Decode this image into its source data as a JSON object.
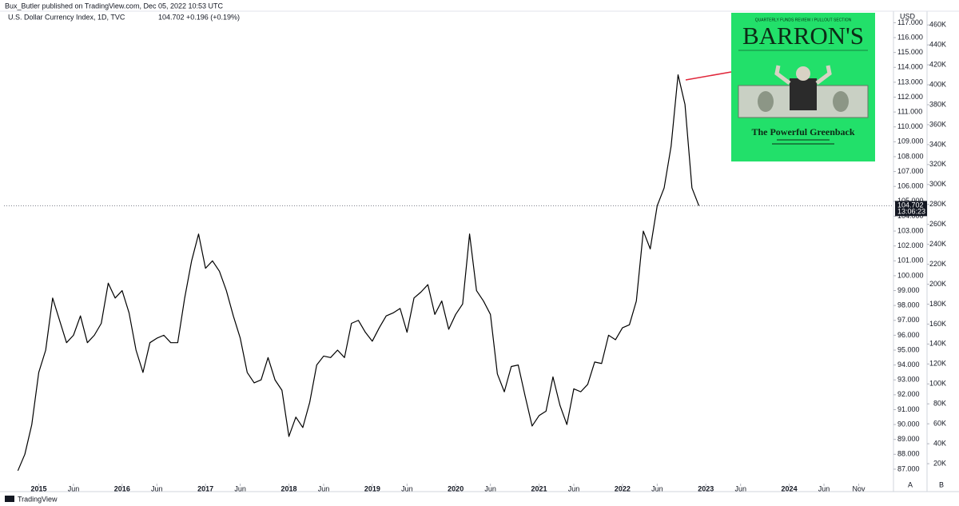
{
  "header": {
    "publisher": "Bux_Butler published on TradingView.com, Dec 05, 2022 10:53 UTC",
    "symbol": "U.S. Dollar Currency Index, 1D, TVC",
    "change": "+0.196 (+0.19%)",
    "footer_logo": "TradingView",
    "buttons": [
      "A",
      "B"
    ]
  },
  "cover": {
    "kicker": "QUARTERLY FUNDS REVIEW / PULLOUT SECTION",
    "masthead": "BARRON'S",
    "headline": "The Powerful Greenback"
  },
  "chart_data": {
    "type": "line",
    "grid": false,
    "y_axis_label": "USD",
    "last_value": 104.702,
    "countdown": "13:06:23",
    "xlim": [
      "2014-08",
      "2025-04"
    ],
    "xticks": [
      {
        "value": "2015-01",
        "label": "2015"
      },
      {
        "value": "2015-06",
        "label": "Jun"
      },
      {
        "value": "2016-01",
        "label": "2016"
      },
      {
        "value": "2016-06",
        "label": "Jun"
      },
      {
        "value": "2017-01",
        "label": "2017"
      },
      {
        "value": "2017-06",
        "label": "Jun"
      },
      {
        "value": "2018-01",
        "label": "2018"
      },
      {
        "value": "2018-06",
        "label": "Jun"
      },
      {
        "value": "2019-01",
        "label": "2019"
      },
      {
        "value": "2019-06",
        "label": "Jun"
      },
      {
        "value": "2020-01",
        "label": "2020"
      },
      {
        "value": "2020-06",
        "label": "Jun"
      },
      {
        "value": "2021-01",
        "label": "2021"
      },
      {
        "value": "2021-06",
        "label": "Jun"
      },
      {
        "value": "2022-01",
        "label": "2022"
      },
      {
        "value": "2022-06",
        "label": "Jun"
      },
      {
        "value": "2023-01",
        "label": "2023"
      },
      {
        "value": "2023-06",
        "label": "Jun"
      },
      {
        "value": "2024-01",
        "label": "2024"
      },
      {
        "value": "2024-06",
        "label": "Jun"
      },
      {
        "value": "2024-11",
        "label": "Nov"
      }
    ],
    "ylim": [
      86.03,
      117.72
    ],
    "yticks": [
      {
        "value": 87,
        "label": "87.000"
      },
      {
        "value": 88,
        "label": "88.000"
      },
      {
        "value": 89,
        "label": "89.000"
      },
      {
        "value": 90,
        "label": "90.000"
      },
      {
        "value": 91,
        "label": "91.000"
      },
      {
        "value": 92,
        "label": "92.000"
      },
      {
        "value": 93,
        "label": "93.000"
      },
      {
        "value": 94,
        "label": "94.000"
      },
      {
        "value": 95,
        "label": "95.000"
      },
      {
        "value": 96,
        "label": "96.000"
      },
      {
        "value": 97,
        "label": "97.000"
      },
      {
        "value": 98,
        "label": "98.000"
      },
      {
        "value": 99,
        "label": "99.000"
      },
      {
        "value": 100,
        "label": "100.000"
      },
      {
        "value": 101,
        "label": "101.000"
      },
      {
        "value": 102,
        "label": "102.000"
      },
      {
        "value": 103,
        "label": "103.000"
      },
      {
        "value": 104,
        "label": "104.000"
      },
      {
        "value": 105,
        "label": "105.000"
      },
      {
        "value": 106,
        "label": "106.000"
      },
      {
        "value": 107,
        "label": "107.000"
      },
      {
        "value": 108,
        "label": "108.000"
      },
      {
        "value": 109,
        "label": "109.000"
      },
      {
        "value": 110,
        "label": "110.000"
      },
      {
        "value": 111,
        "label": "111.000"
      },
      {
        "value": 112,
        "label": "112.000"
      },
      {
        "value": 113,
        "label": "113.000"
      },
      {
        "value": 114,
        "label": "114.000"
      },
      {
        "value": 115,
        "label": "115.000"
      },
      {
        "value": 116,
        "label": "116.000"
      },
      {
        "value": 117,
        "label": "117.000"
      }
    ],
    "y2lim": [
      0,
      473000
    ],
    "y2ticks": [
      {
        "value": 20000,
        "label": "20K"
      },
      {
        "value": 40000,
        "label": "40K"
      },
      {
        "value": 60000,
        "label": "60K"
      },
      {
        "value": 80000,
        "label": "80K"
      },
      {
        "value": 100000,
        "label": "100K"
      },
      {
        "value": 120000,
        "label": "120K"
      },
      {
        "value": 140000,
        "label": "140K"
      },
      {
        "value": 160000,
        "label": "160K"
      },
      {
        "value": 180000,
        "label": "180K"
      },
      {
        "value": 200000,
        "label": "200K"
      },
      {
        "value": 220000,
        "label": "220K"
      },
      {
        "value": 240000,
        "label": "240K"
      },
      {
        "value": 260000,
        "label": "260K"
      },
      {
        "value": 280000,
        "label": "280K"
      },
      {
        "value": 300000,
        "label": "300K"
      },
      {
        "value": 320000,
        "label": "320K"
      },
      {
        "value": 340000,
        "label": "340K"
      },
      {
        "value": 360000,
        "label": "360K"
      },
      {
        "value": 380000,
        "label": "380K"
      },
      {
        "value": 400000,
        "label": "400K"
      },
      {
        "value": 420000,
        "label": "420K"
      },
      {
        "value": 440000,
        "label": "440K"
      },
      {
        "value": 460000,
        "label": "460K"
      }
    ],
    "x": [
      "2014-10",
      "2014-11",
      "2014-12",
      "2015-01",
      "2015-02",
      "2015-03",
      "2015-04",
      "2015-05",
      "2015-06",
      "2015-07",
      "2015-08",
      "2015-09",
      "2015-10",
      "2015-11",
      "2015-12",
      "2016-01",
      "2016-02",
      "2016-03",
      "2016-04",
      "2016-05",
      "2016-06",
      "2016-07",
      "2016-08",
      "2016-09",
      "2016-10",
      "2016-11",
      "2016-12",
      "2017-01",
      "2017-02",
      "2017-03",
      "2017-04",
      "2017-05",
      "2017-06",
      "2017-07",
      "2017-08",
      "2017-09",
      "2017-10",
      "2017-11",
      "2017-12",
      "2018-01",
      "2018-02",
      "2018-03",
      "2018-04",
      "2018-05",
      "2018-06",
      "2018-07",
      "2018-08",
      "2018-09",
      "2018-10",
      "2018-11",
      "2018-12",
      "2019-01",
      "2019-02",
      "2019-03",
      "2019-04",
      "2019-05",
      "2019-06",
      "2019-07",
      "2019-08",
      "2019-09",
      "2019-10",
      "2019-11",
      "2019-12",
      "2020-01",
      "2020-02",
      "2020-03",
      "2020-04",
      "2020-05",
      "2020-06",
      "2020-07",
      "2020-08",
      "2020-09",
      "2020-10",
      "2020-11",
      "2020-12",
      "2021-01",
      "2021-02",
      "2021-03",
      "2021-04",
      "2021-05",
      "2021-06",
      "2021-07",
      "2021-08",
      "2021-09",
      "2021-10",
      "2021-11",
      "2021-12",
      "2022-01",
      "2022-02",
      "2022-03",
      "2022-04",
      "2022-05",
      "2022-06",
      "2022-07",
      "2022-08",
      "2022-09",
      "2022-10",
      "2022-11",
      "2022-12"
    ],
    "series": [
      {
        "name": "U.S. Dollar Currency Index",
        "color": "#000000",
        "values": [
          86.9,
          88.0,
          90.0,
          93.5,
          95.0,
          98.5,
          97.0,
          95.5,
          96.0,
          97.3,
          95.5,
          96.0,
          96.8,
          99.5,
          98.5,
          99.0,
          97.5,
          95.0,
          93.5,
          95.5,
          95.8,
          96.0,
          95.5,
          95.5,
          98.5,
          101.0,
          102.8,
          100.5,
          101.0,
          100.3,
          99.0,
          97.3,
          95.8,
          93.5,
          92.8,
          93.0,
          94.5,
          93.0,
          92.3,
          89.2,
          90.5,
          89.8,
          91.5,
          94.0,
          94.6,
          94.5,
          95.0,
          94.5,
          96.8,
          97.0,
          96.2,
          95.6,
          96.5,
          97.3,
          97.5,
          97.8,
          96.2,
          98.5,
          98.9,
          99.4,
          97.4,
          98.3,
          96.4,
          97.4,
          98.1,
          102.8,
          99.0,
          98.3,
          97.4,
          93.4,
          92.2,
          93.9,
          94.0,
          91.9,
          89.9,
          90.6,
          90.9,
          93.2,
          91.3,
          90.0,
          92.4,
          92.2,
          92.7,
          94.2,
          94.1,
          96.0,
          95.7,
          96.5,
          96.7,
          98.3,
          103.0,
          101.8,
          104.7,
          105.9,
          108.7,
          113.5,
          111.5,
          105.9,
          104.7
        ]
      }
    ]
  }
}
